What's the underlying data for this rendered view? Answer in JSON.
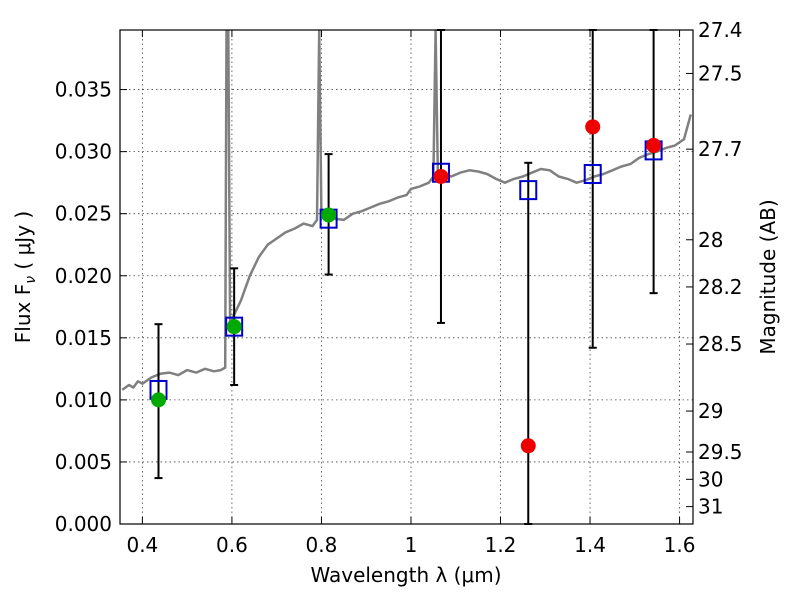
{
  "chart_data": {
    "type": "scatter",
    "xlabel": "Wavelength  λ (μm)",
    "ylabel": "Flux  F",
    "ylabel_sub": "ν",
    "ylabel_unit": " ( μJy )",
    "y2label": "Magnitude (AB)",
    "xlim": [
      0.35,
      1.63
    ],
    "ylim": [
      0.0,
      0.0398
    ],
    "grid": true,
    "x_ticks": [
      {
        "value": 0.4,
        "label": "0.4"
      },
      {
        "value": 0.6,
        "label": "0.6"
      },
      {
        "value": 0.8,
        "label": "0.8"
      },
      {
        "value": 1.0,
        "label": "1"
      },
      {
        "value": 1.2,
        "label": "1.2"
      },
      {
        "value": 1.4,
        "label": "1.4"
      },
      {
        "value": 1.6,
        "label": "1.6"
      }
    ],
    "y_ticks": [
      {
        "value": 0.0,
        "label": "0.000"
      },
      {
        "value": 0.005,
        "label": "0.005"
      },
      {
        "value": 0.01,
        "label": "0.010"
      },
      {
        "value": 0.015,
        "label": "0.015"
      },
      {
        "value": 0.02,
        "label": "0.020"
      },
      {
        "value": 0.025,
        "label": "0.025"
      },
      {
        "value": 0.03,
        "label": "0.030"
      },
      {
        "value": 0.035,
        "label": "0.035"
      }
    ],
    "y2_ticks": [
      {
        "label": "27.4",
        "flux": 0.0398
      },
      {
        "label": "27.5",
        "flux": 0.0363
      },
      {
        "label": "27.7",
        "flux": 0.0302
      },
      {
        "label": "28",
        "flux": 0.0229
      },
      {
        "label": "28.2",
        "flux": 0.0191
      },
      {
        "label": "28.5",
        "flux": 0.0145
      },
      {
        "label": "29",
        "flux": 0.0091
      },
      {
        "label": "29.5",
        "flux": 0.0058
      },
      {
        "label": "30",
        "flux": 0.0036
      },
      {
        "label": "31",
        "flux": 0.0014
      }
    ],
    "colors": {
      "spectrum": "#808080",
      "model_square": "#0000cc",
      "green_points": "#00aa00",
      "red_points": "#ee0000",
      "errorbar": "#000000",
      "grid": "#444444"
    },
    "spectrum": {
      "name": "",
      "x": [
        0.355,
        0.37,
        0.38,
        0.39,
        0.4,
        0.42,
        0.44,
        0.46,
        0.48,
        0.5,
        0.52,
        0.54,
        0.56,
        0.575,
        0.585,
        0.588,
        0.592,
        0.596,
        0.6,
        0.62,
        0.64,
        0.66,
        0.68,
        0.7,
        0.72,
        0.74,
        0.76,
        0.78,
        0.79,
        0.795,
        0.8,
        0.81,
        0.83,
        0.85,
        0.87,
        0.89,
        0.91,
        0.93,
        0.95,
        0.97,
        0.99,
        1.0,
        1.02,
        1.04,
        1.05,
        1.055,
        1.06,
        1.07,
        1.09,
        1.11,
        1.13,
        1.15,
        1.17,
        1.19,
        1.21,
        1.23,
        1.25,
        1.27,
        1.29,
        1.31,
        1.33,
        1.35,
        1.37,
        1.39,
        1.41,
        1.43,
        1.45,
        1.47,
        1.49,
        1.51,
        1.53,
        1.55,
        1.57,
        1.59,
        1.61,
        1.625
      ],
      "y": [
        0.0108,
        0.0112,
        0.011,
        0.0115,
        0.0113,
        0.0118,
        0.0121,
        0.0122,
        0.012,
        0.0124,
        0.0122,
        0.0125,
        0.0123,
        0.0124,
        0.0126,
        0.0398,
        0.0398,
        0.016,
        0.0165,
        0.018,
        0.02,
        0.0215,
        0.0225,
        0.023,
        0.0235,
        0.0238,
        0.0242,
        0.024,
        0.0245,
        0.0398,
        0.025,
        0.0248,
        0.0246,
        0.0245,
        0.025,
        0.0252,
        0.0255,
        0.0258,
        0.026,
        0.0263,
        0.0265,
        0.027,
        0.0272,
        0.0275,
        0.028,
        0.0398,
        0.0285,
        0.0282,
        0.028,
        0.0283,
        0.0285,
        0.0284,
        0.0282,
        0.0278,
        0.0275,
        0.0278,
        0.028,
        0.0283,
        0.0286,
        0.0285,
        0.028,
        0.0278,
        0.0275,
        0.0277,
        0.028,
        0.0282,
        0.0285,
        0.0288,
        0.029,
        0.0295,
        0.0298,
        0.03,
        0.0303,
        0.0305,
        0.031,
        0.033
      ]
    },
    "model_squares": {
      "name": "",
      "x": [
        0.436,
        0.605,
        0.816,
        1.067,
        1.262,
        1.406,
        1.542
      ],
      "y": [
        0.0108,
        0.0159,
        0.0246,
        0.0283,
        0.0269,
        0.0282,
        0.0301
      ]
    },
    "green_points": {
      "name": "",
      "x": [
        0.436,
        0.605,
        0.816
      ],
      "y": [
        0.01,
        0.0159,
        0.0249
      ]
    },
    "red_points": {
      "name": "",
      "x": [
        1.067,
        1.262,
        1.406,
        1.542
      ],
      "y": [
        0.028,
        0.0063,
        0.032,
        0.0305
      ]
    },
    "error_bars": [
      {
        "x": 0.436,
        "low": 0.0037,
        "high": 0.0161
      },
      {
        "x": 0.605,
        "low": 0.0112,
        "high": 0.0206
      },
      {
        "x": 0.816,
        "low": 0.0201,
        "high": 0.0298
      },
      {
        "x": 1.067,
        "low": 0.0162,
        "high": 0.0398
      },
      {
        "x": 1.262,
        "low": 0.0,
        "high": 0.0291
      },
      {
        "x": 1.406,
        "low": 0.0142,
        "high": 0.0398
      },
      {
        "x": 1.542,
        "low": 0.0186,
        "high": 0.0398
      }
    ]
  }
}
